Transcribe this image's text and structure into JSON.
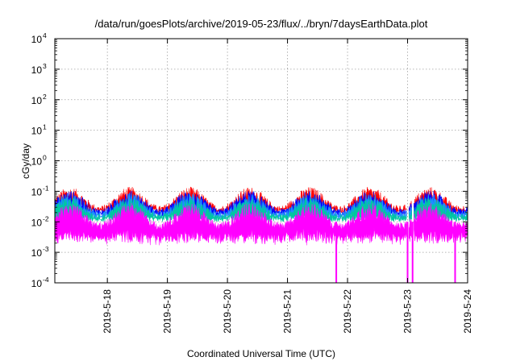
{
  "chart_data": {
    "type": "line",
    "title": "/data/run/goesPlots/archive/2019-05-23/flux/../bryn/7daysEarthData.plot",
    "xlabel": "Coordinated Universal Time (UTC)",
    "ylabel": "cGy/day",
    "yscale": "log",
    "ylim": [
      0.0001,
      10000
    ],
    "y_ticks": [
      {
        "base": "10",
        "exp": "-4",
        "value": 0.0001
      },
      {
        "base": "10",
        "exp": "-3",
        "value": 0.001
      },
      {
        "base": "10",
        "exp": "-2",
        "value": 0.01
      },
      {
        "base": "10",
        "exp": "-1",
        "value": 0.1
      },
      {
        "base": "10",
        "exp": "0",
        "value": 1
      },
      {
        "base": "10",
        "exp": "1",
        "value": 10
      },
      {
        "base": "10",
        "exp": "2",
        "value": 100
      },
      {
        "base": "10",
        "exp": "3",
        "value": 1000
      },
      {
        "base": "10",
        "exp": "4",
        "value": 10000
      }
    ],
    "xlim": [
      "2019-05-17T03:00",
      "2019-05-24T00:00"
    ],
    "x_ticks": [
      "2019-5-18",
      "2019-5-19",
      "2019-5-20",
      "2019-5-21",
      "2019-5-22",
      "2019-5-23",
      "2019-5-24"
    ],
    "x_tick_times": [
      "2019-05-18T00:00",
      "2019-05-19T00:00",
      "2019-05-20T00:00",
      "2019-05-21T00:00",
      "2019-05-22T00:00",
      "2019-05-23T00:00",
      "2019-05-24T00:00"
    ],
    "grid": true,
    "series": [
      {
        "color": "#ff0000",
        "peak": [
          0.02,
          0.085
        ],
        "baseline": 0.03
      },
      {
        "color": "#0000ff",
        "peak": [
          0.015,
          0.065
        ],
        "baseline": 0.025
      },
      {
        "color": "#1e90ff",
        "peak": [
          0.012,
          0.055
        ],
        "baseline": 0.02
      },
      {
        "color": "#00c8a0",
        "peak": [
          0.01,
          0.04
        ],
        "baseline": 0.017
      },
      {
        "color": "#ff00ff",
        "peak": [
          0.003,
          0.025
        ],
        "baseline": 0.008
      }
    ],
    "dropouts": [
      {
        "time": "2019-05-21T19:30",
        "value": 0.0001
      },
      {
        "time": "2019-05-23T00:00",
        "value": 0.0001
      },
      {
        "time": "2019-05-23T02:00",
        "value": 0.0001
      },
      {
        "time": "2019-05-23T19:00",
        "value": 0.0001
      }
    ],
    "gaps": [
      {
        "start": "2019-05-22T23:40",
        "end": "2019-05-23T00:25"
      },
      {
        "start": "2019-05-23T01:40",
        "end": "2019-05-23T02:30"
      }
    ],
    "envelope_daily_cycle": "diurnal humps, highest near 2019-05-17T09:00 and daily thereafter"
  }
}
